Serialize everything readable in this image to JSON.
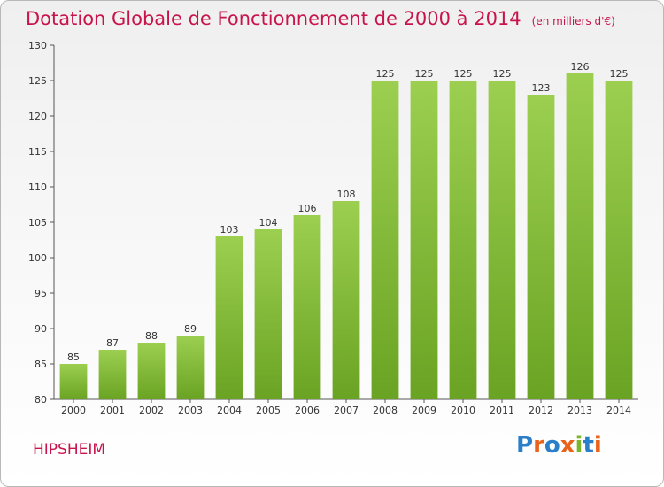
{
  "title": "Dotation Globale de Fonctionnement de 2000 à 2014",
  "unit_note": "(en milliers d'€)",
  "place": "HIPSHEIM",
  "logo": {
    "text": "Proxiti"
  },
  "colors": {
    "bar": "#8cc63f",
    "bar_dark": "#6aa323",
    "title": "#c8144b"
  },
  "chart_data": {
    "type": "bar",
    "title": "Dotation Globale de Fonctionnement de 2000 à 2014",
    "xlabel": "",
    "ylabel": "",
    "ylim": [
      80,
      130
    ],
    "yticks": [
      80,
      85,
      90,
      95,
      100,
      105,
      110,
      115,
      120,
      125,
      130
    ],
    "grid": false,
    "categories": [
      "2000",
      "2001",
      "2002",
      "2003",
      "2004",
      "2005",
      "2006",
      "2007",
      "2008",
      "2009",
      "2010",
      "2011",
      "2012",
      "2013",
      "2014"
    ],
    "values": [
      85,
      87,
      88,
      89,
      103,
      104,
      106,
      108,
      125,
      125,
      125,
      125,
      123,
      126,
      125
    ]
  }
}
